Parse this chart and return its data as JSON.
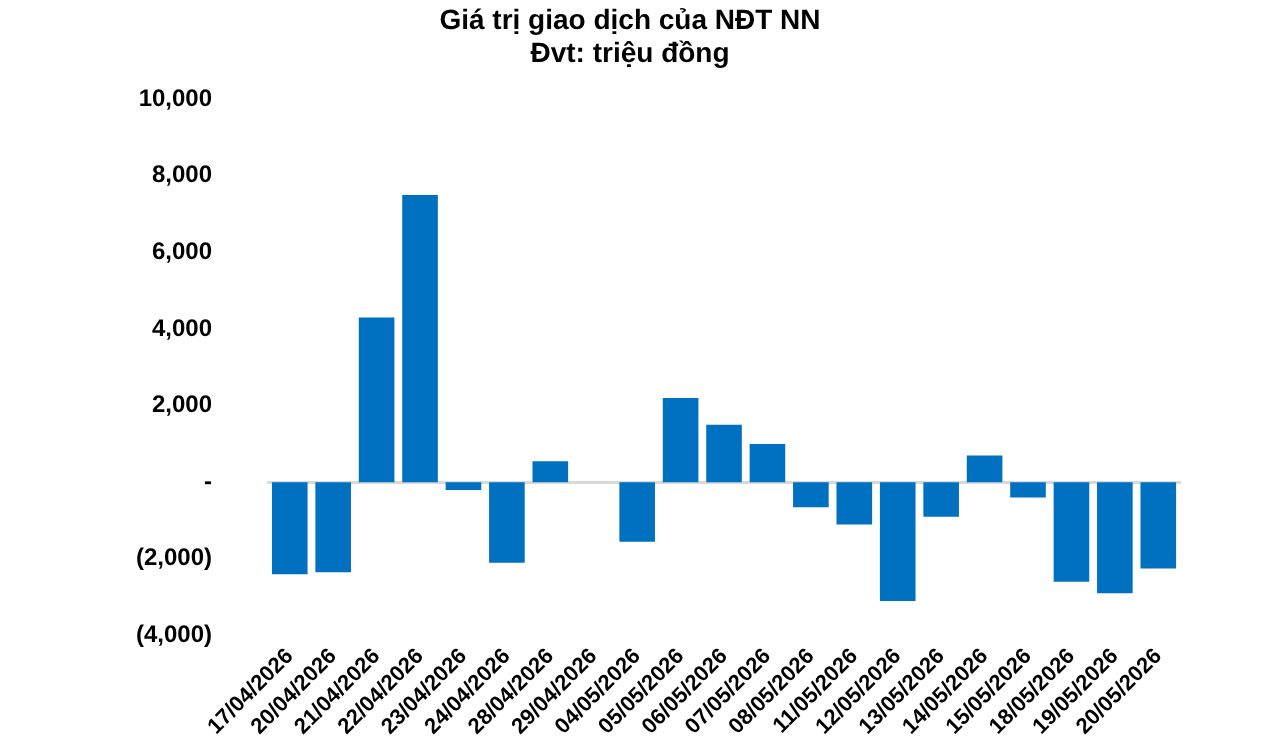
{
  "chart_data": {
    "type": "bar",
    "title": "Giá trị giao dịch của NĐT NN",
    "subtitle": "Đvt: triệu đồng",
    "categories": [
      "17/04/2026",
      "20/04/2026",
      "21/04/2026",
      "22/04/2026",
      "23/04/2026",
      "24/04/2026",
      "28/04/2026",
      "29/04/2026",
      "04/05/2026",
      "05/05/2026",
      "06/05/2026",
      "07/05/2026",
      "08/05/2026",
      "11/05/2026",
      "12/05/2026",
      "13/05/2026",
      "14/05/2026",
      "15/05/2026",
      "18/05/2026",
      "19/05/2026",
      "20/05/2026"
    ],
    "values": [
      -2400,
      -2350,
      4300,
      7500,
      -200,
      -2100,
      550,
      0,
      -1550,
      2200,
      1500,
      1000,
      -650,
      -1100,
      -3100,
      -900,
      700,
      -400,
      -2600,
      -2900,
      -2250
    ],
    "color": "#0070c0",
    "ylim": [
      -4000,
      10000
    ],
    "yticks": [
      {
        "value": -4000,
        "label": "(4,000)"
      },
      {
        "value": -2000,
        "label": "(2,000)"
      },
      {
        "value": 0,
        "label": "-"
      },
      {
        "value": 2000,
        "label": "2,000"
      },
      {
        "value": 4000,
        "label": "4,000"
      },
      {
        "value": 6000,
        "label": "6,000"
      },
      {
        "value": 8000,
        "label": "8,000"
      },
      {
        "value": 10000,
        "label": "10,000"
      }
    ],
    "legend": false
  }
}
